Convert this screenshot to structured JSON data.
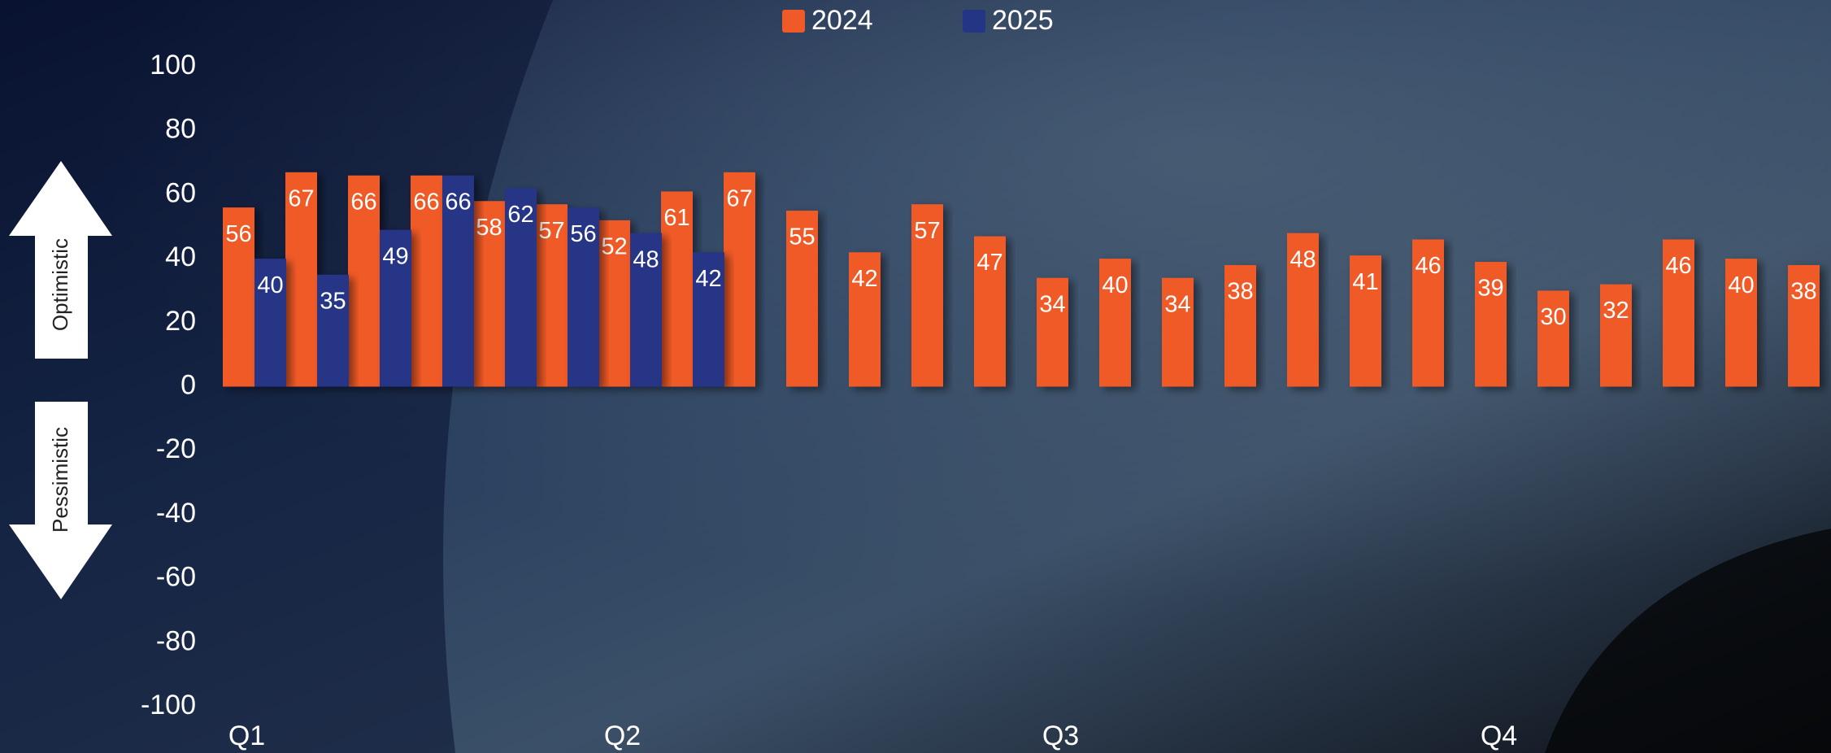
{
  "chart_data": {
    "type": "bar",
    "categories": [
      "Q1",
      null,
      null,
      null,
      null,
      null,
      "Q2",
      null,
      null,
      null,
      null,
      null,
      null,
      "Q3",
      null,
      null,
      null,
      null,
      null,
      null,
      "Q4",
      null,
      null,
      null,
      null,
      null
    ],
    "series": [
      {
        "name": "2024",
        "color": "#f05a28",
        "values": [
          56,
          67,
          66,
          66,
          58,
          57,
          52,
          61,
          67,
          55,
          42,
          57,
          47,
          34,
          40,
          34,
          38,
          48,
          41,
          46,
          39,
          30,
          32,
          46,
          40,
          38
        ]
      },
      {
        "name": "2025",
        "color": "#253585",
        "values": [
          40,
          35,
          49,
          66,
          62,
          56,
          48,
          42,
          null,
          null,
          null,
          null,
          null,
          null,
          null,
          null,
          null,
          null,
          null,
          null,
          null,
          null,
          null,
          null,
          null,
          null
        ]
      }
    ],
    "ylim": [
      -100,
      100
    ],
    "yticks": [
      -100,
      -80,
      -60,
      -40,
      -20,
      0,
      20,
      40,
      60,
      80,
      100
    ],
    "annotations": [
      "Optimistic",
      "Pessimistic"
    ],
    "legend": "top"
  }
}
